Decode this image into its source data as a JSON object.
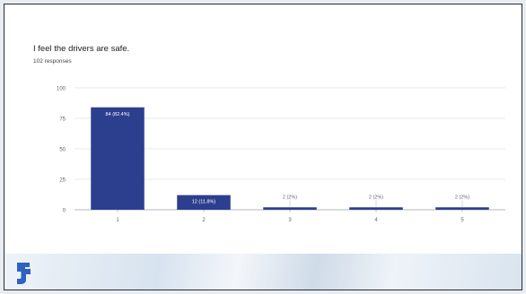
{
  "chart_data": {
    "type": "bar",
    "title": "I feel the drivers are safe.",
    "subtitle": "102 responses",
    "categories": [
      "1",
      "2",
      "3",
      "4",
      "5"
    ],
    "values": [
      84,
      12,
      2,
      2,
      2
    ],
    "data_labels": [
      "84 (82.4%)",
      "12 (11.8%)",
      "2 (2%)",
      "2 (2%)",
      "2 (2%)"
    ],
    "yticks": [
      "100",
      "75",
      "50",
      "25",
      "0"
    ],
    "ylim": [
      0,
      100
    ],
    "xlabel": "",
    "ylabel": "",
    "grid": true,
    "bar_color": "#2c3f8f",
    "grid_color": "#e3e3e3"
  },
  "branding": {
    "logo_icon": "brand-logo-icon",
    "logo_color": "#2f62c0"
  }
}
